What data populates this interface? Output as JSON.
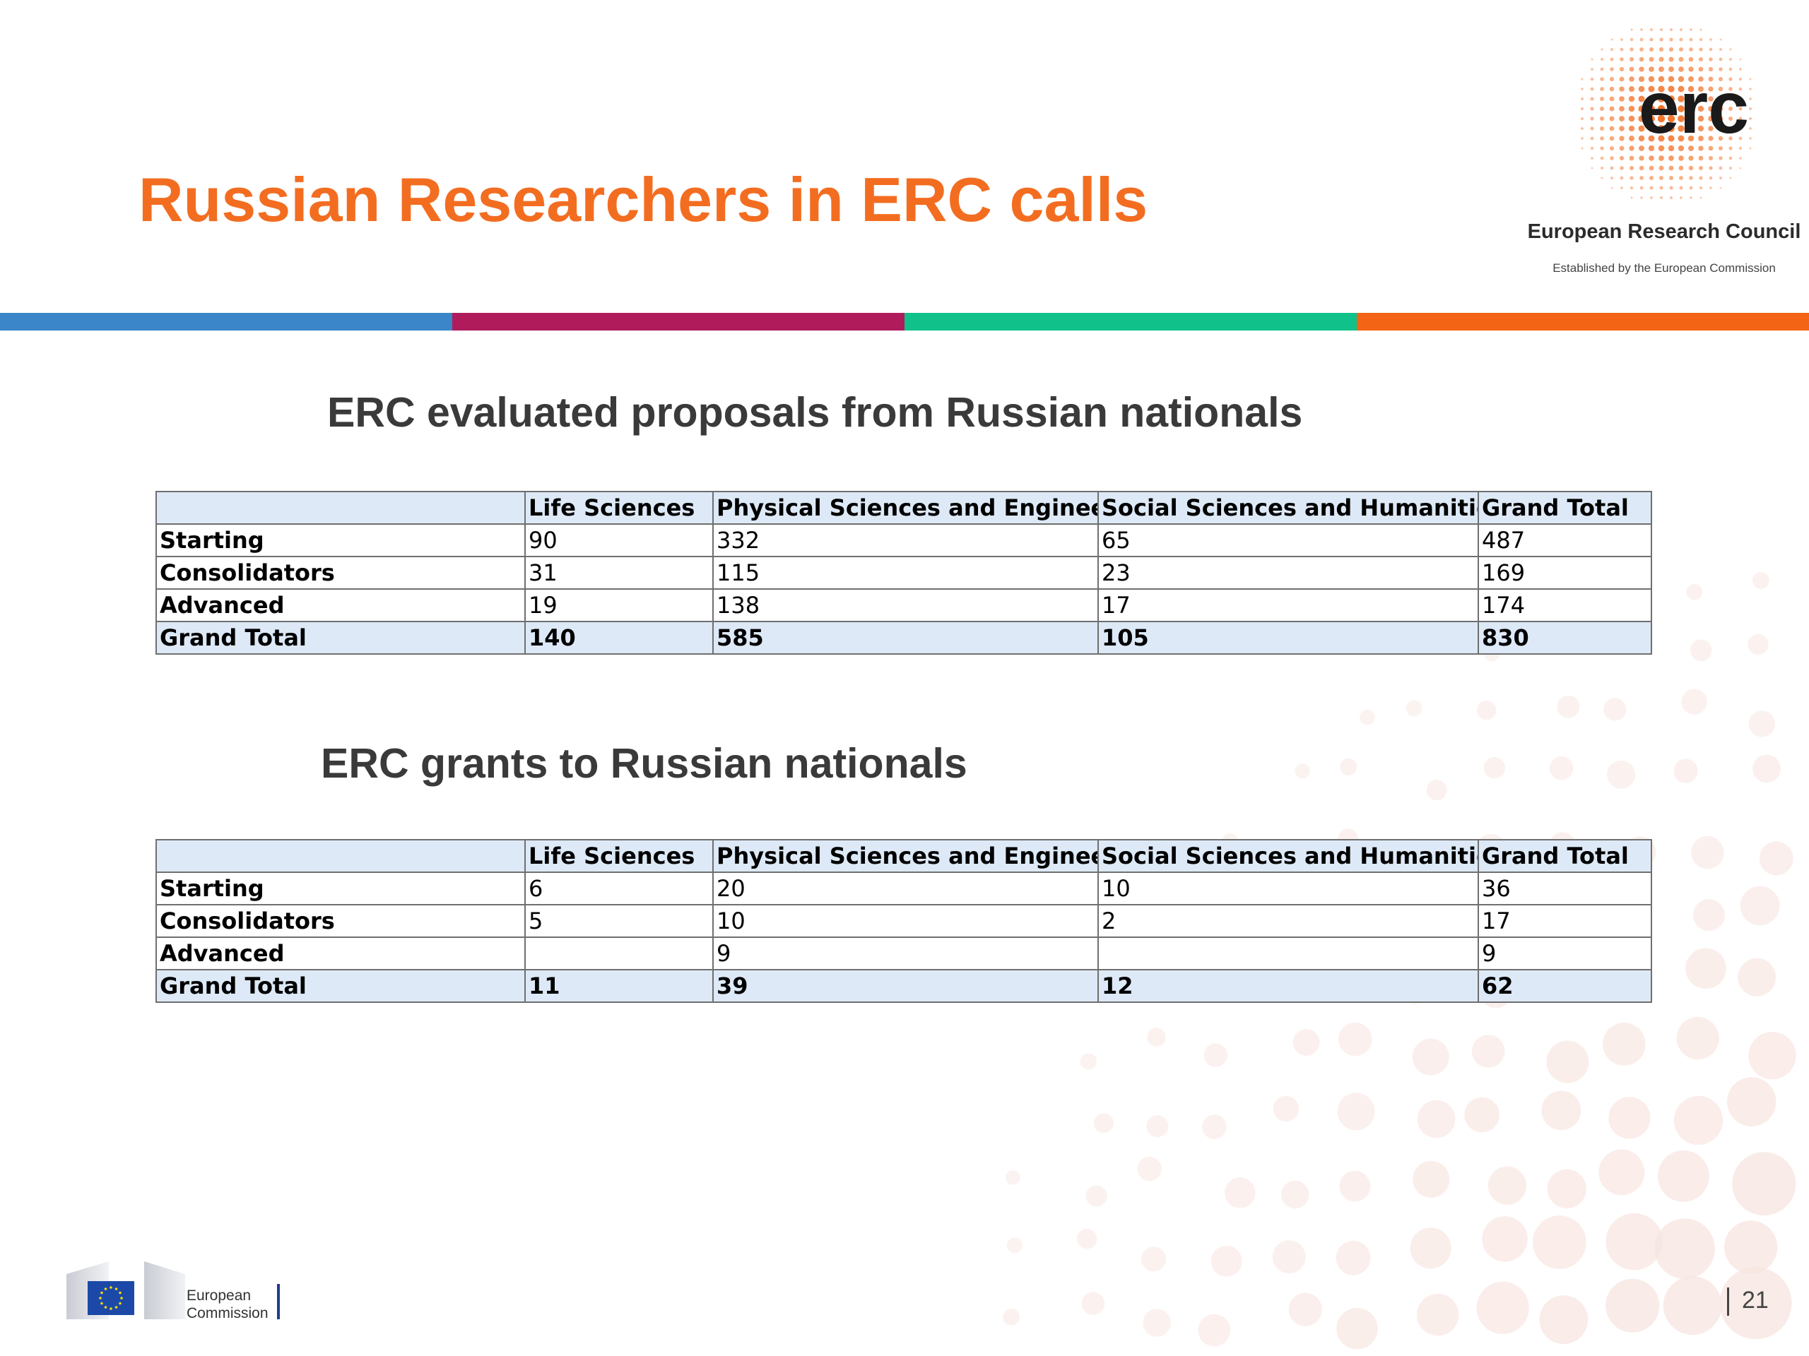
{
  "slide": {
    "title": "Russian Researchers in ERC calls",
    "page_number": "21"
  },
  "colors": {
    "title": "#f36d21",
    "stripe": [
      "#3a86c8",
      "#b01c5b",
      "#10c28a",
      "#f36414"
    ],
    "dot": "#f36d21",
    "bg_dot": "#f7e4df",
    "table_header_bg": "#dde9f6"
  },
  "erc_logo": {
    "mark": "erc",
    "org_name": "European Research Council",
    "tagline": "Established by the European Commission"
  },
  "proposals": {
    "heading": "ERC evaluated proposals from Russian nationals",
    "columns": [
      "",
      "Life Sciences",
      "Physical Sciences and Engineering",
      "Social Sciences and Humanities",
      "Grand Total"
    ],
    "rows": [
      [
        "Starting",
        "90",
        "332",
        "65",
        "487"
      ],
      [
        "Consolidators",
        "31",
        "115",
        "23",
        "169"
      ],
      [
        "Advanced",
        "19",
        "138",
        "17",
        "174"
      ]
    ],
    "total": [
      "Grand Total",
      "140",
      "585",
      "105",
      "830"
    ]
  },
  "grants": {
    "heading": "ERC grants to Russian nationals",
    "columns": [
      "",
      "Life Sciences",
      "Physical Sciences and Engineering",
      "Social Sciences and Humanities",
      "Grand Total"
    ],
    "rows": [
      [
        "Starting",
        "6",
        "20",
        "10",
        "36"
      ],
      [
        "Consolidators",
        "5",
        "10",
        "2",
        "17"
      ],
      [
        "Advanced",
        "",
        "9",
        "",
        "9"
      ]
    ],
    "total": [
      "Grand Total",
      "11",
      "39",
      "12",
      "62"
    ]
  },
  "footer": {
    "ec_logo_line1": "European",
    "ec_logo_line2": "Commission",
    "ec_flag_icon": "eu-flag-icon"
  }
}
